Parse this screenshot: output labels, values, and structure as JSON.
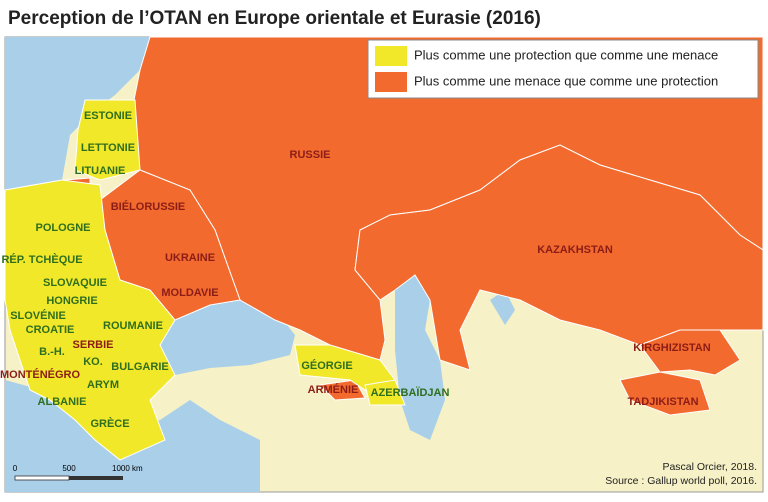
{
  "title": "Perception de l’OTAN en Europe orientale et Eurasie (2016)",
  "legend": [
    {
      "label": "Plus comme une protection que comme une menace",
      "color": "#f2e82a",
      "text_color": "#2f6e1f"
    },
    {
      "label": "Plus comme une menace que comme une protection",
      "color": "#f26a2e",
      "text_color": "#8c1d16"
    }
  ],
  "countries": [
    {
      "name": "ESTONIE",
      "group": 0
    },
    {
      "name": "LETTONIE",
      "group": 0
    },
    {
      "name": "LITUANIE",
      "group": 0
    },
    {
      "name": "BIÉLORUSSIE",
      "group": 1
    },
    {
      "name": "POLOGNE",
      "group": 0
    },
    {
      "name": "RÉP. TCHÈQUE",
      "group": 0
    },
    {
      "name": "SLOVAQUIE",
      "group": 0
    },
    {
      "name": "HONGRIE",
      "group": 0
    },
    {
      "name": "SLOVÉNIE",
      "group": 0
    },
    {
      "name": "CROATIE",
      "group": 0
    },
    {
      "name": "ROUMANIE",
      "group": 0
    },
    {
      "name": "B.-H.",
      "group": 0
    },
    {
      "name": "SERBIE",
      "group": 1
    },
    {
      "name": "KO.",
      "group": 0
    },
    {
      "name": "MONTÉNÉGRO",
      "group": 1
    },
    {
      "name": "BULGARIE",
      "group": 0
    },
    {
      "name": "ARYM",
      "group": 0
    },
    {
      "name": "ALBANIE",
      "group": 0
    },
    {
      "name": "GRÈCE",
      "group": 0
    },
    {
      "name": "RUSSIE",
      "group": 1
    },
    {
      "name": "UKRAINE",
      "group": 1
    },
    {
      "name": "MOLDAVIE",
      "group": 1
    },
    {
      "name": "GÉORGIE",
      "group": 0
    },
    {
      "name": "ARMÉNIE",
      "group": 1
    },
    {
      "name": "AZERBAÏDJAN",
      "group": 0
    },
    {
      "name": "KAZAKHSTAN",
      "group": 1
    },
    {
      "name": "KIRGHIZISTAN",
      "group": 1
    },
    {
      "name": "TADJIKISTAN",
      "group": 1
    }
  ],
  "scale": [
    "0",
    "500",
    "1000 km"
  ],
  "credits": [
    "Pascal Orcier, 2018.",
    "Source : Gallup world poll, 2016."
  ]
}
